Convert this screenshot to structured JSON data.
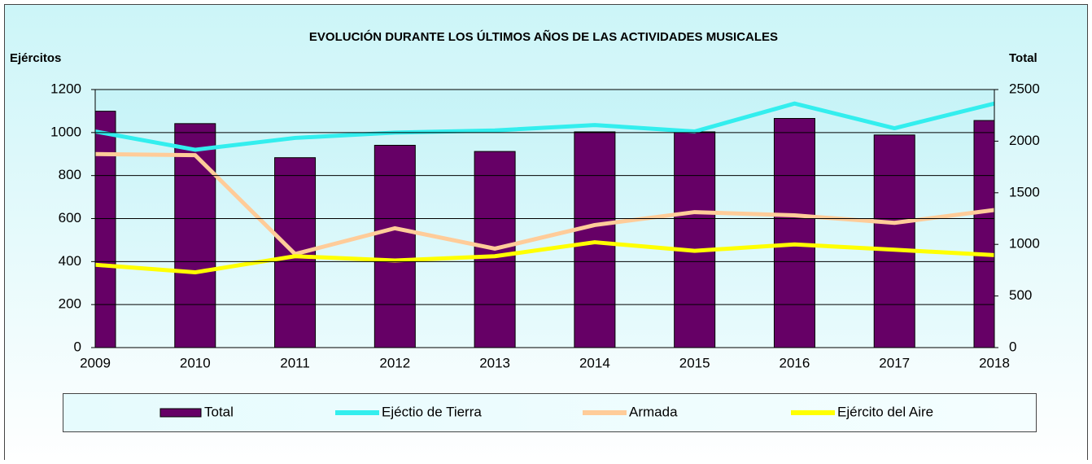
{
  "chart_data": {
    "type": "combo",
    "title": "EVOLUCIÓN DURANTE LOS ÚLTIMOS AÑOS DE LAS ACTIVIDADES MUSICALES",
    "ylabel": "Ejércitos",
    "y2label": "Total",
    "categories": [
      "2009",
      "2010",
      "2011",
      "2012",
      "2013",
      "2014",
      "2015",
      "2016",
      "2017",
      "2018"
    ],
    "ylim": [
      0,
      1200
    ],
    "yticks": [
      0,
      200,
      400,
      600,
      800,
      1000,
      1200
    ],
    "y2lim": [
      0,
      2500
    ],
    "y2ticks": [
      0,
      500,
      1000,
      1500,
      2000,
      2500
    ],
    "grid": true,
    "legend": "bottom",
    "series": [
      {
        "name": "Total",
        "type": "bar",
        "axis": "y2",
        "color": "#660066",
        "values": [
          2290,
          2170,
          1840,
          1960,
          1900,
          2090,
          2090,
          2220,
          2060,
          2200
        ]
      },
      {
        "name": "Ejéctio de Tierra",
        "type": "line",
        "color": "#33eeee",
        "values": [
          1005,
          920,
          975,
          1000,
          1010,
          1035,
          1005,
          1135,
          1020,
          1135
        ]
      },
      {
        "name": "Armada",
        "type": "line",
        "color": "#ffcc99",
        "values": [
          900,
          895,
          435,
          555,
          460,
          570,
          630,
          615,
          580,
          640
        ]
      },
      {
        "name": "Ejército del Aire",
        "type": "line",
        "color": "#ffff00",
        "values": [
          385,
          350,
          425,
          405,
          425,
          490,
          450,
          480,
          455,
          430
        ]
      }
    ]
  }
}
